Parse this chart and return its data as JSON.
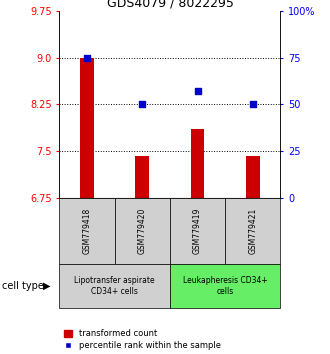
{
  "title": "GDS4079 / 8022295",
  "samples": [
    "GSM779418",
    "GSM779420",
    "GSM779419",
    "GSM779421"
  ],
  "bar_values": [
    9.0,
    7.42,
    7.85,
    7.42
  ],
  "percentile_values": [
    75,
    50,
    57,
    50
  ],
  "ylim_left": [
    6.75,
    9.75
  ],
  "ylim_right": [
    0,
    100
  ],
  "yticks_left": [
    6.75,
    7.5,
    8.25,
    9.0,
    9.75
  ],
  "yticks_right": [
    0,
    25,
    50,
    75,
    100
  ],
  "ytick_labels_right": [
    "0",
    "25",
    "50",
    "75",
    "100%"
  ],
  "bar_color": "#cc0000",
  "dot_color": "#0000cc",
  "bar_bottom": 6.75,
  "bar_width": 0.25,
  "groups": [
    {
      "label": "Lipotransfer aspirate\nCD34+ cells",
      "indices": [
        0,
        1
      ],
      "color": "#d0d0d0"
    },
    {
      "label": "Leukapheresis CD34+\ncells",
      "indices": [
        2,
        3
      ],
      "color": "#66ee66"
    }
  ],
  "cell_type_label": "cell type",
  "legend_bar_label": "transformed count",
  "legend_dot_label": "percentile rank within the sample",
  "grid_lines": [
    7.5,
    8.25,
    9.0
  ],
  "title_fontsize": 9,
  "tick_fontsize": 7,
  "sample_fontsize": 5.5,
  "group_fontsize": 5.5
}
